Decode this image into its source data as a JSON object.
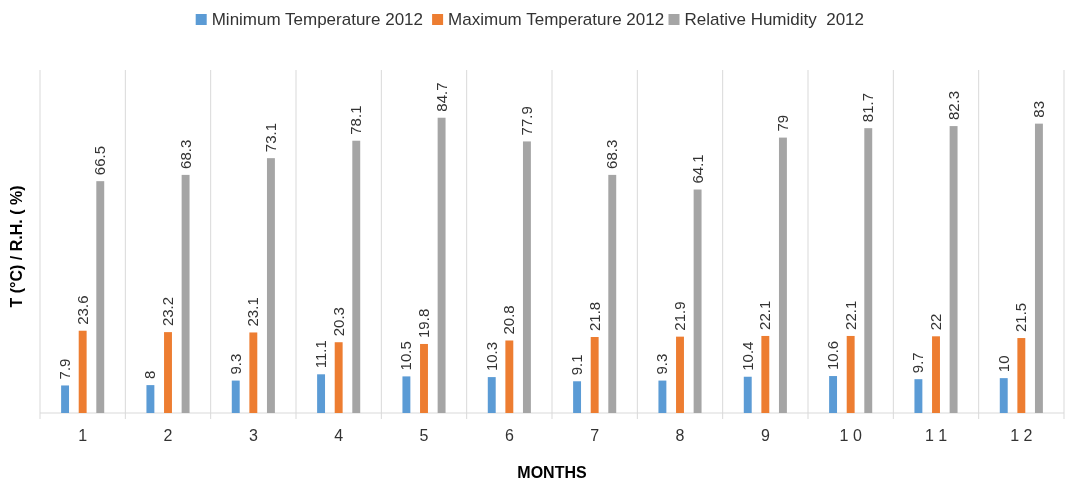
{
  "chart_data": {
    "type": "bar",
    "xlabel": "MONTHS",
    "ylabel": "T (°C) / R.H. ( %)",
    "categories": [
      "1",
      "2",
      "3",
      "4",
      "5",
      "6",
      "7",
      "8",
      "9",
      "1 0",
      "1 1",
      "1 2"
    ],
    "series": [
      {
        "name": "Minimum Temperature 2012",
        "color": "#5b9bd5",
        "values": [
          7.9,
          8,
          9.3,
          11.1,
          10.5,
          10.3,
          9.1,
          9.3,
          10.4,
          10.6,
          9.7,
          10
        ]
      },
      {
        "name": "Maximum Temperature 2012",
        "color": "#ed7d31",
        "values": [
          23.6,
          23.2,
          23.1,
          20.3,
          19.8,
          20.8,
          21.8,
          21.9,
          22.1,
          22.1,
          22,
          21.5
        ]
      },
      {
        "name": "Relative Humidity  2012",
        "color": "#a5a5a5",
        "values": [
          66.5,
          68.3,
          73.1,
          78.1,
          84.7,
          77.9,
          68.3,
          64.1,
          79,
          81.7,
          82.3,
          83
        ]
      }
    ],
    "data_labels": true,
    "grid": "x",
    "legend": "top"
  }
}
